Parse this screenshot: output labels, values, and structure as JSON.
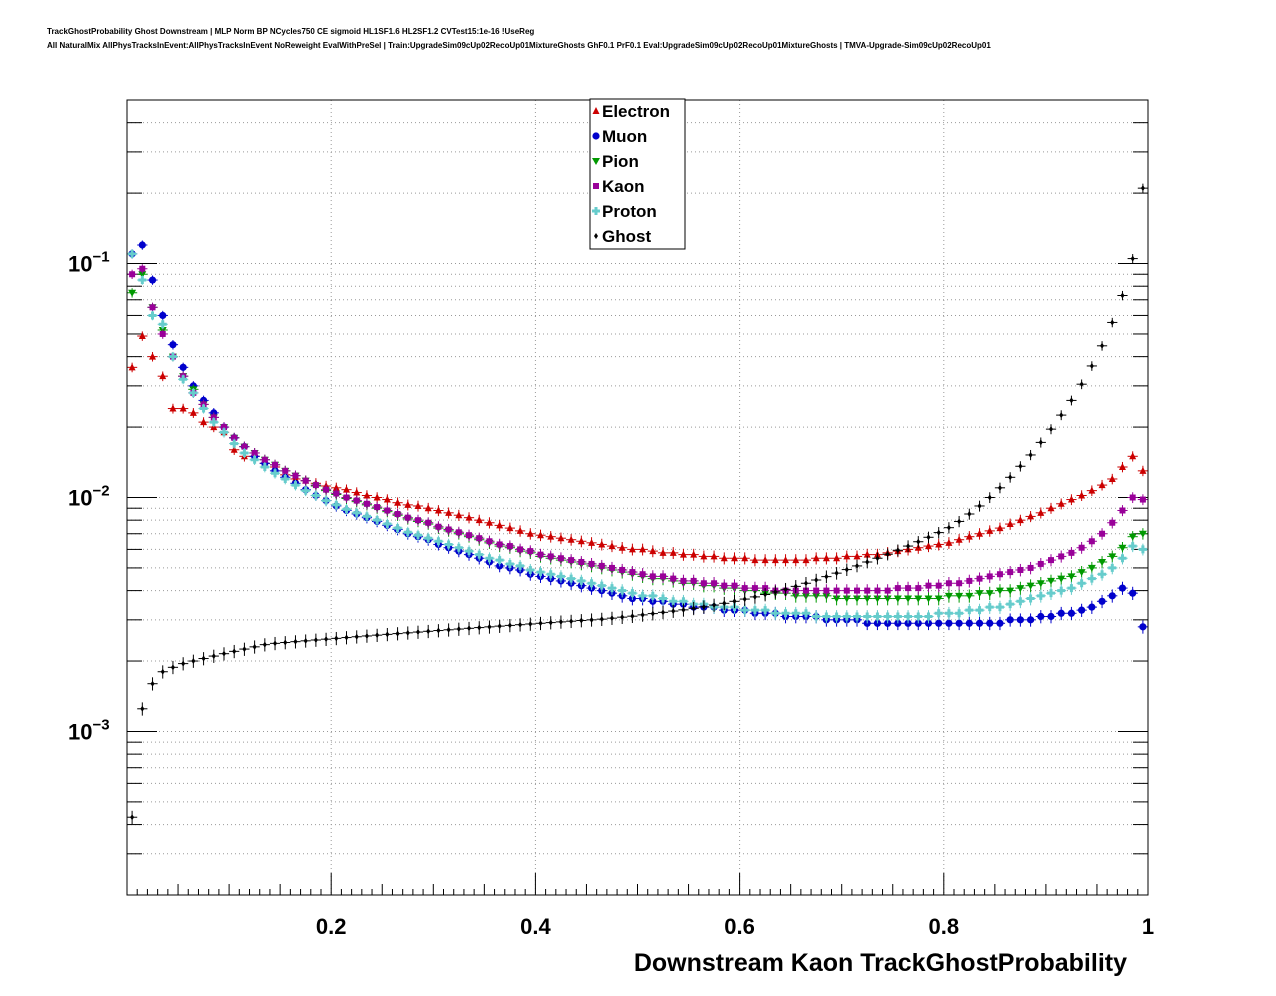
{
  "header": {
    "line1": "TrackGhostProbability Ghost Downstream | MLP Norm BP NCycles750 CE sigmoid HL1SF1.6 HL2SF1.2 CVTest15:1e-16 !UseReg",
    "line2": "All NaturalMix AllPhysTracksInEvent:AllPhysTracksInEvent NoReweight EvalWithPreSel | Train:UpgradeSim09cUp02RecoUp01MixtureGhosts GhF0.1 PrF0.1 Eval:UpgradeSim09cUp02RecoUp01MixtureGhosts | TMVA-Upgrade-Sim09cUp02RecoUp01"
  },
  "chart_data": {
    "type": "scatter",
    "xlabel": "Downstream Kaon TrackGhostProbability",
    "ylabel": "",
    "xlim": [
      0.0,
      1.0
    ],
    "ylim": [
      0.0002,
      0.5
    ],
    "yscale": "log",
    "grid": true,
    "legend_position": "top-center",
    "x_ticks": [
      {
        "value": 0.2,
        "label": "0.2"
      },
      {
        "value": 0.4,
        "label": "0.4"
      },
      {
        "value": 0.6,
        "label": "0.6"
      },
      {
        "value": 0.8,
        "label": "0.8"
      },
      {
        "value": 1.0,
        "label": "1"
      }
    ],
    "y_ticks": [
      {
        "value": 0.1,
        "base": "10",
        "exp": "−1"
      },
      {
        "value": 0.01,
        "base": "10",
        "exp": "−2"
      },
      {
        "value": 0.001,
        "base": "10",
        "exp": "−3"
      }
    ],
    "x": [
      0.005,
      0.015,
      0.025,
      0.035,
      0.045,
      0.055,
      0.065,
      0.075,
      0.085,
      0.095,
      0.105,
      0.115,
      0.125,
      0.135,
      0.145,
      0.155,
      0.165,
      0.175,
      0.185,
      0.195,
      0.205,
      0.215,
      0.225,
      0.235,
      0.245,
      0.255,
      0.265,
      0.275,
      0.285,
      0.295,
      0.305,
      0.315,
      0.325,
      0.335,
      0.345,
      0.355,
      0.365,
      0.375,
      0.385,
      0.395,
      0.405,
      0.415,
      0.425,
      0.435,
      0.445,
      0.455,
      0.465,
      0.475,
      0.485,
      0.495,
      0.505,
      0.515,
      0.525,
      0.535,
      0.545,
      0.555,
      0.565,
      0.575,
      0.585,
      0.595,
      0.605,
      0.615,
      0.625,
      0.635,
      0.645,
      0.655,
      0.665,
      0.675,
      0.685,
      0.695,
      0.705,
      0.715,
      0.725,
      0.735,
      0.745,
      0.755,
      0.765,
      0.775,
      0.785,
      0.795,
      0.805,
      0.815,
      0.825,
      0.835,
      0.845,
      0.855,
      0.865,
      0.875,
      0.885,
      0.895,
      0.905,
      0.915,
      0.925,
      0.935,
      0.945,
      0.955,
      0.965,
      0.975,
      0.985,
      0.995
    ],
    "series": [
      {
        "name": "Electron",
        "color": "#cc0000",
        "marker": "triangle",
        "values": [
          0.036,
          0.049,
          0.04,
          0.033,
          0.024,
          0.024,
          0.023,
          0.021,
          0.02,
          0.019,
          0.016,
          0.015,
          0.015,
          0.014,
          0.0135,
          0.0125,
          0.012,
          0.0118,
          0.0115,
          0.0112,
          0.011,
          0.0108,
          0.0105,
          0.0102,
          0.01,
          0.0098,
          0.0095,
          0.0093,
          0.0092,
          0.009,
          0.0088,
          0.0086,
          0.0084,
          0.0082,
          0.008,
          0.0078,
          0.0076,
          0.0074,
          0.0072,
          0.007,
          0.0069,
          0.0068,
          0.0067,
          0.0066,
          0.0065,
          0.0064,
          0.0063,
          0.0062,
          0.0061,
          0.006,
          0.006,
          0.0059,
          0.0058,
          0.0058,
          0.0057,
          0.0057,
          0.0056,
          0.0056,
          0.0055,
          0.0055,
          0.0055,
          0.0054,
          0.0054,
          0.0054,
          0.0054,
          0.0054,
          0.0054,
          0.0055,
          0.0055,
          0.0055,
          0.0056,
          0.0056,
          0.0057,
          0.0057,
          0.0058,
          0.0059,
          0.006,
          0.0061,
          0.0062,
          0.0063,
          0.0064,
          0.0066,
          0.0068,
          0.007,
          0.0072,
          0.0074,
          0.0077,
          0.008,
          0.0083,
          0.0086,
          0.009,
          0.0094,
          0.0098,
          0.0102,
          0.0107,
          0.0113,
          0.012,
          0.0135,
          0.015,
          0.013
        ]
      },
      {
        "name": "Muon",
        "color": "#0000cc",
        "marker": "circle",
        "values": [
          0.11,
          0.12,
          0.085,
          0.06,
          0.045,
          0.036,
          0.03,
          0.026,
          0.023,
          0.02,
          0.018,
          0.0165,
          0.015,
          0.014,
          0.013,
          0.0122,
          0.0115,
          0.0108,
          0.0102,
          0.0097,
          0.0092,
          0.0088,
          0.0085,
          0.0082,
          0.0079,
          0.0076,
          0.0073,
          0.007,
          0.0068,
          0.0066,
          0.0063,
          0.0061,
          0.0059,
          0.0057,
          0.0055,
          0.0053,
          0.0051,
          0.005,
          0.0049,
          0.0047,
          0.0046,
          0.0045,
          0.0044,
          0.0043,
          0.0042,
          0.0041,
          0.004,
          0.0039,
          0.0038,
          0.0037,
          0.0037,
          0.0036,
          0.0036,
          0.0035,
          0.0035,
          0.0034,
          0.0034,
          0.0034,
          0.0033,
          0.0033,
          0.0033,
          0.0032,
          0.0032,
          0.0032,
          0.0031,
          0.0031,
          0.0031,
          0.0031,
          0.003,
          0.003,
          0.003,
          0.003,
          0.0029,
          0.0029,
          0.0029,
          0.0029,
          0.0029,
          0.0029,
          0.0029,
          0.0029,
          0.0029,
          0.0029,
          0.0029,
          0.0029,
          0.0029,
          0.0029,
          0.003,
          0.003,
          0.003,
          0.0031,
          0.0031,
          0.0032,
          0.0032,
          0.0033,
          0.0034,
          0.0036,
          0.0038,
          0.0041,
          0.0039,
          0.0028
        ]
      },
      {
        "name": "Pion",
        "color": "#009900",
        "marker": "triangle-down",
        "values": [
          0.075,
          0.09,
          0.065,
          0.052,
          0.04,
          0.033,
          0.029,
          0.025,
          0.022,
          0.02,
          0.018,
          0.0165,
          0.0155,
          0.0145,
          0.0138,
          0.013,
          0.0124,
          0.0118,
          0.0112,
          0.0107,
          0.0103,
          0.0099,
          0.0096,
          0.0093,
          0.009,
          0.0087,
          0.0084,
          0.0081,
          0.0079,
          0.0077,
          0.0074,
          0.0072,
          0.007,
          0.0068,
          0.0066,
          0.0064,
          0.0062,
          0.0061,
          0.0059,
          0.0058,
          0.0056,
          0.0055,
          0.0054,
          0.0053,
          0.0052,
          0.0051,
          0.005,
          0.0049,
          0.0048,
          0.0047,
          0.0046,
          0.0045,
          0.0045,
          0.0044,
          0.0043,
          0.0043,
          0.0042,
          0.0042,
          0.0041,
          0.0041,
          0.004,
          0.004,
          0.0039,
          0.0039,
          0.0039,
          0.0038,
          0.0038,
          0.0038,
          0.0038,
          0.0037,
          0.0037,
          0.0037,
          0.0037,
          0.0037,
          0.0037,
          0.0037,
          0.0037,
          0.0037,
          0.0037,
          0.0037,
          0.0038,
          0.0038,
          0.0038,
          0.0039,
          0.0039,
          0.004,
          0.004,
          0.0041,
          0.0042,
          0.0043,
          0.0044,
          0.0045,
          0.0046,
          0.0048,
          0.005,
          0.0053,
          0.0056,
          0.0061,
          0.0068,
          0.007
        ]
      },
      {
        "name": "Kaon",
        "color": "#990099",
        "marker": "square",
        "values": [
          0.09,
          0.095,
          0.065,
          0.05,
          0.04,
          0.033,
          0.028,
          0.025,
          0.022,
          0.02,
          0.018,
          0.0165,
          0.0155,
          0.0145,
          0.0138,
          0.013,
          0.0124,
          0.0118,
          0.0113,
          0.0108,
          0.0104,
          0.01,
          0.0097,
          0.0094,
          0.0091,
          0.0088,
          0.0085,
          0.0082,
          0.008,
          0.0078,
          0.0075,
          0.0073,
          0.0071,
          0.0069,
          0.0067,
          0.0065,
          0.0063,
          0.0062,
          0.006,
          0.0059,
          0.0057,
          0.0056,
          0.0055,
          0.0054,
          0.0053,
          0.0052,
          0.0051,
          0.005,
          0.0049,
          0.0048,
          0.0047,
          0.0046,
          0.0046,
          0.0045,
          0.0044,
          0.0044,
          0.0043,
          0.0043,
          0.0042,
          0.0042,
          0.0041,
          0.0041,
          0.0041,
          0.004,
          0.004,
          0.004,
          0.004,
          0.004,
          0.004,
          0.004,
          0.004,
          0.004,
          0.004,
          0.004,
          0.004,
          0.0041,
          0.0041,
          0.0041,
          0.0042,
          0.0042,
          0.0043,
          0.0043,
          0.0044,
          0.0045,
          0.0046,
          0.0047,
          0.0048,
          0.0049,
          0.005,
          0.0052,
          0.0054,
          0.0056,
          0.0058,
          0.0061,
          0.0065,
          0.007,
          0.0078,
          0.0088,
          0.01,
          0.0098
        ]
      },
      {
        "name": "Proton",
        "color": "#66cccc",
        "marker": "cross",
        "values": [
          0.11,
          0.085,
          0.06,
          0.055,
          0.04,
          0.032,
          0.028,
          0.024,
          0.021,
          0.019,
          0.017,
          0.0155,
          0.0145,
          0.0135,
          0.0127,
          0.012,
          0.0113,
          0.0107,
          0.0102,
          0.0097,
          0.0093,
          0.0089,
          0.0086,
          0.0083,
          0.008,
          0.0077,
          0.0074,
          0.0071,
          0.0069,
          0.0067,
          0.0065,
          0.0063,
          0.0061,
          0.0059,
          0.0057,
          0.0055,
          0.0054,
          0.0052,
          0.0051,
          0.0049,
          0.0048,
          0.0047,
          0.0046,
          0.0045,
          0.0044,
          0.0043,
          0.0042,
          0.0041,
          0.004,
          0.0039,
          0.0038,
          0.0038,
          0.0037,
          0.0036,
          0.0036,
          0.0035,
          0.0035,
          0.0034,
          0.0034,
          0.0034,
          0.0033,
          0.0033,
          0.0033,
          0.0032,
          0.0032,
          0.0032,
          0.0032,
          0.0031,
          0.0031,
          0.0031,
          0.0031,
          0.0031,
          0.0031,
          0.0031,
          0.0031,
          0.0031,
          0.0031,
          0.0031,
          0.0031,
          0.0032,
          0.0032,
          0.0032,
          0.0033,
          0.0033,
          0.0034,
          0.0034,
          0.0035,
          0.0036,
          0.0037,
          0.0038,
          0.0039,
          0.004,
          0.0041,
          0.0043,
          0.0045,
          0.0047,
          0.005,
          0.0055,
          0.0062,
          0.006
        ]
      },
      {
        "name": "Ghost",
        "color": "#000000",
        "marker": "diamond",
        "values": [
          0.00043,
          0.00125,
          0.0016,
          0.0018,
          0.00188,
          0.00195,
          0.002,
          0.00205,
          0.0021,
          0.00215,
          0.0022,
          0.00225,
          0.0023,
          0.00235,
          0.00238,
          0.0024,
          0.00242,
          0.00244,
          0.00246,
          0.00248,
          0.0025,
          0.00252,
          0.00254,
          0.00256,
          0.00258,
          0.0026,
          0.00262,
          0.00264,
          0.00266,
          0.00268,
          0.0027,
          0.00272,
          0.00274,
          0.00276,
          0.00278,
          0.0028,
          0.00282,
          0.00284,
          0.00286,
          0.00288,
          0.0029,
          0.00292,
          0.00294,
          0.00296,
          0.00298,
          0.003,
          0.00302,
          0.00305,
          0.00308,
          0.00311,
          0.00315,
          0.00319,
          0.00323,
          0.00327,
          0.00331,
          0.00336,
          0.00341,
          0.00347,
          0.00353,
          0.0036,
          0.00368,
          0.00376,
          0.00385,
          0.00395,
          0.00405,
          0.00417,
          0.0043,
          0.00444,
          0.00459,
          0.00475,
          0.00492,
          0.0051,
          0.0053,
          0.0055,
          0.00572,
          0.00595,
          0.0062,
          0.00647,
          0.00676,
          0.00708,
          0.00743,
          0.0079,
          0.0085,
          0.0092,
          0.01,
          0.011,
          0.0122,
          0.0136,
          0.0152,
          0.0172,
          0.0196,
          0.0225,
          0.026,
          0.0305,
          0.0365,
          0.0445,
          0.056,
          0.073,
          0.105,
          0.21
        ]
      }
    ]
  }
}
